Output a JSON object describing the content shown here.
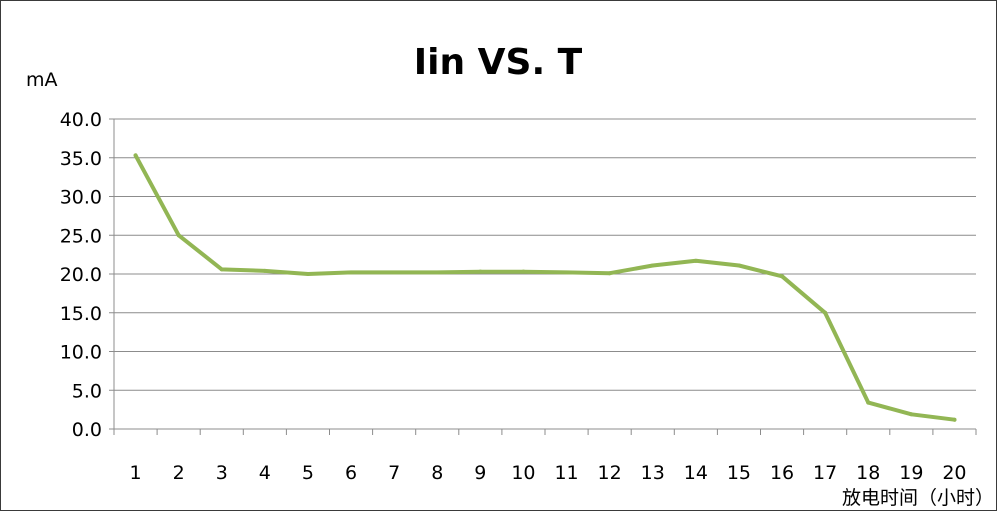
{
  "chart_data": {
    "type": "line",
    "title": "Iin VS. T",
    "ylabel": "mA",
    "xlabel": "放电时间（小时）",
    "ylim": [
      0,
      40
    ],
    "y_ticks": [
      "0.0",
      "5.0",
      "10.0",
      "15.0",
      "20.0",
      "25.0",
      "30.0",
      "35.0",
      "40.0"
    ],
    "categories": [
      "1",
      "2",
      "3",
      "4",
      "5",
      "6",
      "7",
      "8",
      "9",
      "10",
      "11",
      "12",
      "13",
      "14",
      "15",
      "16",
      "17",
      "18",
      "19",
      "20"
    ],
    "series": [
      {
        "color": "#92b654",
        "values": [
          35.3,
          25.0,
          20.6,
          20.4,
          20.0,
          20.2,
          20.2,
          20.2,
          20.3,
          20.3,
          20.2,
          20.1,
          21.1,
          21.7,
          21.1,
          19.7,
          15.0,
          3.4,
          1.9,
          1.2
        ]
      }
    ],
    "grid": true,
    "legend": "none"
  }
}
